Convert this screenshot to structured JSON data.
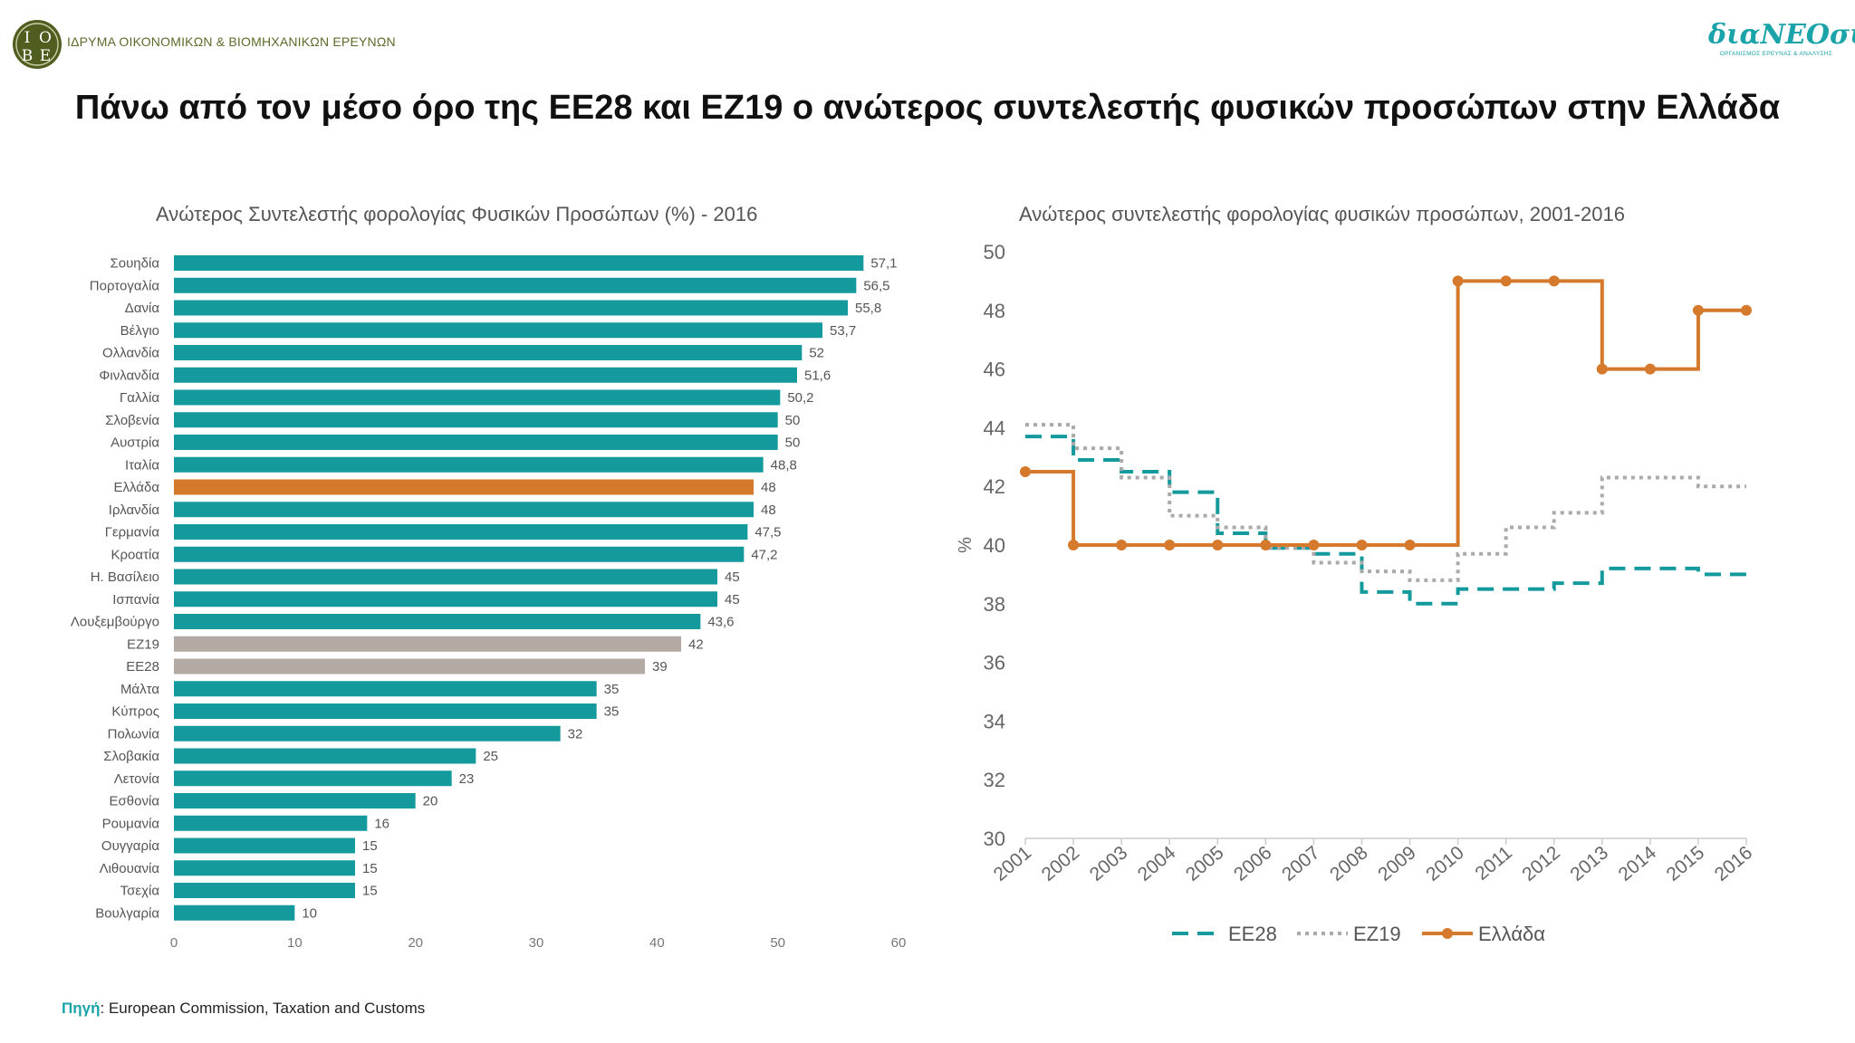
{
  "header": {
    "iobe_logo_letters": [
      "Ι",
      "Ο",
      "Β",
      "Ε"
    ],
    "iobe_name": "ΙΔΡΥΜΑ ΟΙΚΟΝΟΜΙΚΩΝ & ΒΙΟΜΗΧΑΝΙΚΩΝ ΕΡΕΥΝΩΝ",
    "dianeosis_name": "διαΝΕΟσις",
    "dianeosis_tagline": "ΟΡΓΑΝΙΣΜΟΣ ΕΡΕΥΝΑΣ & ΑΝΑΛΥΣΗΣ"
  },
  "page_title": "Πάνω από τον μέσο όρο της ΕΕ28 και ΕΖ19 ο ανώτερος συντελεστής φυσικών προσώπων στην Ελλάδα",
  "source": {
    "label": "Πηγή",
    "text": ": European Commission, Taxation and Customs"
  },
  "colors": {
    "teal": "#14999d",
    "orange": "#d57a2c",
    "gray": "#b3aaa3",
    "axis": "#cccccc",
    "text": "#555555"
  },
  "chart_data": [
    {
      "type": "bar",
      "orientation": "horizontal",
      "title": "Ανώτερος Συντελεστής φορολογίας Φυσικών Προσώπων (%) - 2016",
      "xlim": [
        0,
        60
      ],
      "xticks": [
        0,
        10,
        20,
        30,
        40,
        50,
        60
      ],
      "grid": false,
      "categories": [
        "Σουηδία",
        "Πορτογαλία",
        "Δανία",
        "Βέλγιο",
        "Ολλανδία",
        "Φινλανδία",
        "Γαλλία",
        "Σλοβενία",
        "Αυστρία",
        "Ιταλία",
        "Ελλάδα",
        "Ιρλανδία",
        "Γερμανία",
        "Κροατία",
        "Η. Βασίλειο",
        "Ισπανία",
        "Λουξεμβούργο",
        "ΕΖ19",
        "ΕΕ28",
        "Μάλτα",
        "Κύπρος",
        "Πολωνία",
        "Σλοβακία",
        "Λετονία",
        "Εσθονία",
        "Ρουμανία",
        "Ουγγαρία",
        "Λιθουανία",
        "Τσεχία",
        "Βουλγαρία"
      ],
      "values": [
        57.1,
        56.5,
        55.8,
        53.7,
        52,
        51.6,
        50.2,
        50,
        50,
        48.8,
        48,
        48,
        47.5,
        47.2,
        45,
        45,
        43.6,
        42,
        39,
        35,
        35,
        32,
        25,
        23,
        20,
        16,
        15,
        15,
        15,
        10
      ],
      "value_labels": [
        "57,1",
        "56,5",
        "55,8",
        "53,7",
        "52",
        "51,6",
        "50,2",
        "50",
        "50",
        "48,8",
        "48",
        "48",
        "47,5",
        "47,2",
        "45",
        "45",
        "43,6",
        "42",
        "39",
        "35",
        "35",
        "32",
        "25",
        "23",
        "20",
        "16",
        "15",
        "15",
        "15",
        "10"
      ],
      "highlight": {
        "Ελλάδα": "orange",
        "ΕΖ19": "gray",
        "ΕΕ28": "gray"
      }
    },
    {
      "type": "line",
      "step": true,
      "title": "Ανώτερος συντελεστής φορολογίας φυσικών προσώπων, 2001-2016",
      "ylabel": "%",
      "ylim": [
        30,
        50
      ],
      "yticks": [
        30,
        32,
        34,
        36,
        38,
        40,
        42,
        44,
        46,
        48,
        50
      ],
      "x": [
        "2001",
        "2002",
        "2003",
        "2004",
        "2005",
        "2006",
        "2007",
        "2008",
        "2009",
        "2010",
        "2011",
        "2012",
        "2013",
        "2014",
        "2015",
        "2016"
      ],
      "legend_position": "bottom",
      "series": [
        {
          "name": "ΕΕ28",
          "style": "dashed",
          "color": "#14999d",
          "values": [
            43.7,
            42.9,
            42.5,
            41.8,
            40.4,
            39.9,
            39.7,
            38.4,
            38.0,
            38.5,
            38.5,
            38.7,
            39.2,
            39.2,
            39.0,
            39.0
          ]
        },
        {
          "name": "ΕΖ19",
          "style": "dotted",
          "color": "#aaaaaa",
          "values": [
            44.1,
            43.3,
            42.3,
            41.0,
            40.6,
            39.9,
            39.4,
            39.1,
            38.8,
            39.7,
            40.6,
            41.1,
            42.3,
            42.3,
            42.0,
            42.0
          ]
        },
        {
          "name": "Ελλάδα",
          "style": "solid-markers",
          "color": "#d57a2c",
          "values": [
            42.5,
            40,
            40,
            40,
            40,
            40,
            40,
            40,
            40,
            49,
            49,
            49,
            46,
            46,
            48,
            48
          ]
        }
      ]
    }
  ]
}
